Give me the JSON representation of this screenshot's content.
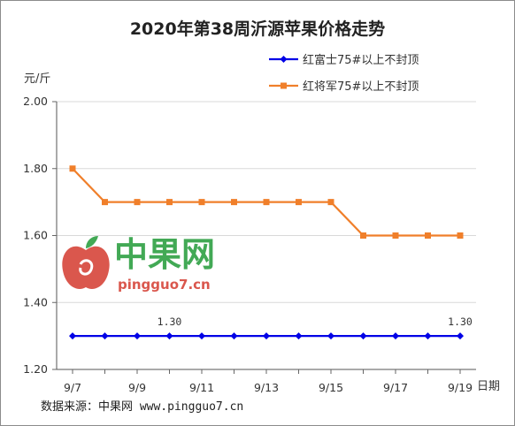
{
  "chart_data": {
    "type": "line",
    "title": "2020年第38周沂源苹果价格走势",
    "ylabel": "元/斤",
    "xlabel": "日期",
    "ylim": [
      1.2,
      2.0
    ],
    "yticks": [
      "1.20",
      "1.40",
      "1.60",
      "1.80",
      "2.00"
    ],
    "xtick_labels": [
      "9/7",
      "9/9",
      "9/11",
      "9/13",
      "9/15",
      "9/17",
      "9/19"
    ],
    "categories": [
      "9/7",
      "9/8",
      "9/9",
      "9/10",
      "9/11",
      "9/12",
      "9/13",
      "9/14",
      "9/15",
      "9/16",
      "9/17",
      "9/18",
      "9/19"
    ],
    "series": [
      {
        "name": "红富士75#以上不封顶",
        "color": "#0000e6",
        "marker": "diamond",
        "values": [
          1.3,
          1.3,
          1.3,
          1.3,
          1.3,
          1.3,
          1.3,
          1.3,
          1.3,
          1.3,
          1.3,
          1.3,
          1.3
        ]
      },
      {
        "name": "红将军75#以上不封顶",
        "color": "#f07f2a",
        "marker": "square",
        "values": [
          1.8,
          1.7,
          1.7,
          1.7,
          1.7,
          1.7,
          1.7,
          1.7,
          1.7,
          1.6,
          1.6,
          1.6,
          1.6
        ]
      }
    ],
    "data_labels": [
      {
        "series": 0,
        "index": 3,
        "text": "1.30"
      },
      {
        "series": 0,
        "index": 12,
        "text": "1.30"
      }
    ],
    "legend": "top-right",
    "grid": true,
    "source": "数据来源：中果网 www.pingguo7.cn"
  },
  "watermark": {
    "name": "中果网",
    "url": "pingguo7.cn"
  }
}
